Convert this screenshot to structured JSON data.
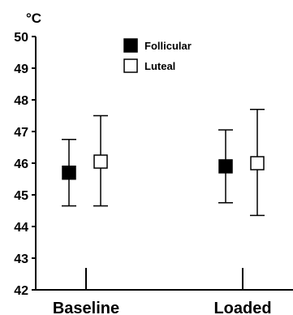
{
  "chart_data": {
    "type": "scatter",
    "unit_label": "°C",
    "categories": [
      "Baseline",
      "Loaded"
    ],
    "ylim": [
      42,
      50
    ],
    "yticks": [
      "42",
      "43",
      "44",
      "45",
      "46",
      "47",
      "48",
      "49",
      "50"
    ],
    "grid": false,
    "legend_position": "top-center",
    "series": [
      {
        "name": "Follicular",
        "marker": "filled-square",
        "color": "#000000",
        "means": [
          45.7,
          45.9
        ],
        "lower": [
          44.65,
          44.75
        ],
        "upper": [
          46.75,
          47.05
        ]
      },
      {
        "name": "Luteal",
        "marker": "open-square",
        "color": "#000000",
        "means": [
          46.05,
          46.0
        ],
        "lower": [
          44.65,
          44.35
        ],
        "upper": [
          47.5,
          47.7
        ]
      }
    ]
  }
}
